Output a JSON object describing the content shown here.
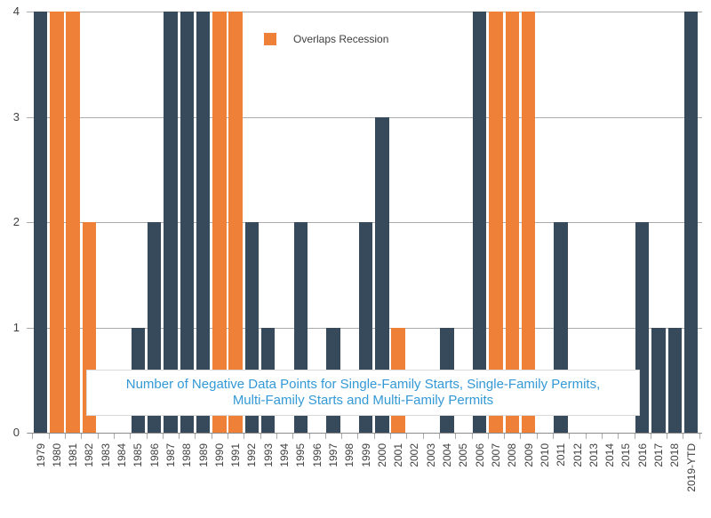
{
  "chart_data": {
    "type": "bar",
    "title": "Number of Negative Data Points for Single-Family Starts, Single-Family Permits, Multi-Family Starts and Multi-Family Permits",
    "title_lines": [
      "Number of Negative Data Points for Single-Family Starts, Single-Family Permits,",
      "Multi-Family Starts and Multi-Family Permits"
    ],
    "legend": {
      "label": "Overlaps Recession",
      "position": "top-center-inside"
    },
    "xlabel": "",
    "ylabel": "",
    "ylim": [
      0,
      4
    ],
    "yticks": [
      0,
      1,
      2,
      3,
      4
    ],
    "grid": "horizontal",
    "categories": [
      "1979",
      "1980",
      "1981",
      "1982",
      "1983",
      "1984",
      "1985",
      "1986",
      "1987",
      "1988",
      "1989",
      "1990",
      "1991",
      "1992",
      "1993",
      "1994",
      "1995",
      "1996",
      "1997",
      "1998",
      "1999",
      "2000",
      "2001",
      "2002",
      "2003",
      "2004",
      "2005",
      "2006",
      "2007",
      "2008",
      "2009",
      "2010",
      "2011",
      "2012",
      "2013",
      "2014",
      "2015",
      "2016",
      "2017",
      "2018",
      "2019-YTD"
    ],
    "values": [
      4,
      4,
      4,
      2,
      0,
      0,
      1,
      2,
      4,
      4,
      4,
      4,
      4,
      2,
      1,
      0,
      2,
      0,
      1,
      0,
      2,
      3,
      1,
      0,
      0,
      1,
      0,
      4,
      4,
      4,
      4,
      0,
      2,
      0,
      0,
      0,
      0,
      2,
      1,
      1,
      4
    ],
    "recession_years": [
      "1980",
      "1981",
      "1982",
      "1990",
      "1991",
      "2001",
      "2007",
      "2008",
      "2009"
    ],
    "colors": {
      "bar_dark": "#374A5C",
      "recession_orange": "#EE8137",
      "gridline": "#ABABAB",
      "axis_line": "#8C8C8C",
      "tick_label": "#3F3F3F",
      "note_text": "#3399D6",
      "note_border": "#D9D9D9",
      "background": "#FFFFFF"
    }
  }
}
